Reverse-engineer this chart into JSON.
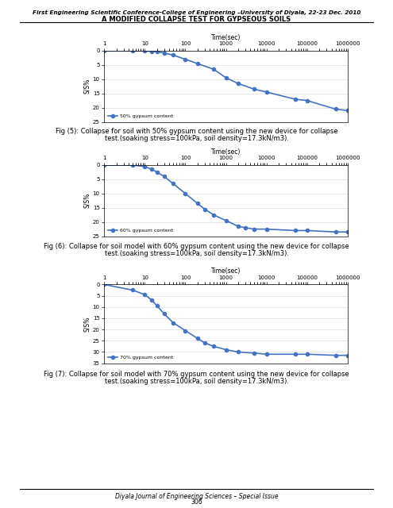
{
  "header_line1": "First Engineering Scientific Conference-College of Engineering –University of Diyala, 22-23 Dec. 2010",
  "header_line2": "A MODIFIED COLLAPSE TEST FOR GYPSEOUS SOILS",
  "footer_line1": "Diyala Journal of Engineering Sciences – Special Issue",
  "footer_line2": "306",
  "charts": [
    {
      "x": [
        1,
        5,
        10,
        15,
        20,
        30,
        50,
        100,
        200,
        500,
        1000,
        2000,
        5000,
        10000,
        50000,
        100000,
        500000,
        1000000
      ],
      "y": [
        0,
        0,
        0,
        0.2,
        0.3,
        0.8,
        1.5,
        3.0,
        4.5,
        6.5,
        9.5,
        11.5,
        13.5,
        14.5,
        17.0,
        17.5,
        20.5,
        21.0
      ],
      "legend": "50% gypsum content",
      "ylabel": "S/S%",
      "xlabel": "Time(sec)",
      "ylim": [
        0,
        25
      ],
      "yticks": [
        0,
        5,
        10,
        15,
        20,
        25
      ],
      "fig_label": "Fig (5):",
      "fig_caption": " Collapse for soil with 50% gypsum content using the new device for collapse",
      "fig_caption2": "test.(soaking stress=100kPa, soil density=17.3kN/m3)."
    },
    {
      "x": [
        1,
        5,
        10,
        15,
        20,
        30,
        50,
        100,
        200,
        300,
        500,
        1000,
        2000,
        3000,
        5000,
        10000,
        50000,
        100000,
        500000,
        1000000
      ],
      "y": [
        0,
        0,
        0.5,
        1.5,
        2.5,
        4.0,
        6.5,
        10.0,
        13.5,
        15.5,
        17.5,
        19.5,
        21.5,
        22.0,
        22.5,
        22.5,
        23.0,
        23.0,
        23.5,
        23.5
      ],
      "legend": "60% gypsum content",
      "ylabel": "S/S%",
      "xlabel": "Time(sec)",
      "ylim": [
        0,
        25
      ],
      "yticks": [
        0,
        5,
        10,
        15,
        20,
        25
      ],
      "fig_label": "Fig (6):",
      "fig_caption": " Collapse for soil model with 60% gypsum content using the new device for collapse",
      "fig_caption2": "test.(soaking stress=100kPa, soil density=17.3kN/m3)."
    },
    {
      "x": [
        1,
        5,
        10,
        15,
        20,
        30,
        50,
        100,
        200,
        300,
        500,
        1000,
        2000,
        5000,
        10000,
        50000,
        100000,
        500000,
        1000000
      ],
      "y": [
        0,
        2.5,
        4.5,
        7.0,
        9.5,
        13.0,
        17.0,
        20.5,
        24.0,
        26.0,
        27.5,
        29.0,
        30.0,
        30.5,
        31.0,
        31.0,
        31.0,
        31.5,
        31.5
      ],
      "legend": "70% gypsum content",
      "ylabel": "S/S%",
      "xlabel": "Time(sec)",
      "ylim": [
        0,
        35
      ],
      "yticks": [
        0,
        5,
        10,
        15,
        20,
        25,
        30,
        35
      ],
      "fig_label": "Fig (7):",
      "fig_caption": " Collapse for soil model with 70% gypsum content using the new device for collapse",
      "fig_caption2": "test.(soaking stress=100kPa, soil density=17.3kN/m3)."
    }
  ],
  "line_color": "#4472C4",
  "marker": "o",
  "marker_size": 3,
  "line_width": 1.2
}
